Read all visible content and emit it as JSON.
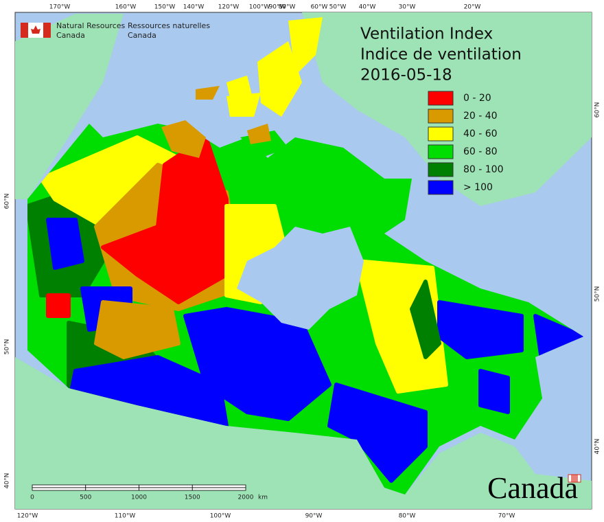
{
  "header": {
    "agency_en": [
      "Natural Resources",
      "Canada"
    ],
    "agency_fr": [
      "Ressources naturelles",
      "Canada"
    ]
  },
  "title": [
    "Ventilation Index",
    "Indice de ventilation"
  ],
  "date": "2016-05-18",
  "legend": [
    {
      "label": "0 - 20",
      "color": "#ff0000"
    },
    {
      "label": "20 - 40",
      "color": "#d99a00"
    },
    {
      "label": "40 - 60",
      "color": "#ffff00"
    },
    {
      "label": "60 - 80",
      "color": "#00dd00"
    },
    {
      "label": "80 - 100",
      "color": "#008000"
    },
    {
      "label": "> 100",
      "color": "#0000ff"
    }
  ],
  "top_labels": [
    "170°W",
    "160°W",
    "150°W",
    "140°W",
    "120°W",
    "100°W",
    "90°W",
    "80°W",
    "60°W",
    "50°W",
    "40°W",
    "30°W",
    "20°W"
  ],
  "bottom_labels": [
    "120°W",
    "110°W",
    "100°W",
    "90°W",
    "80°W",
    "70°W"
  ],
  "left_labels": [
    "60°N",
    "50°N",
    "40°N"
  ],
  "right_labels": [
    "60°N",
    "50°N",
    "40°N"
  ],
  "scale_bar": {
    "ticks": [
      "0",
      "500",
      "1000",
      "1500",
      "2000"
    ],
    "unit": "km"
  },
  "wordmark": "Canada"
}
